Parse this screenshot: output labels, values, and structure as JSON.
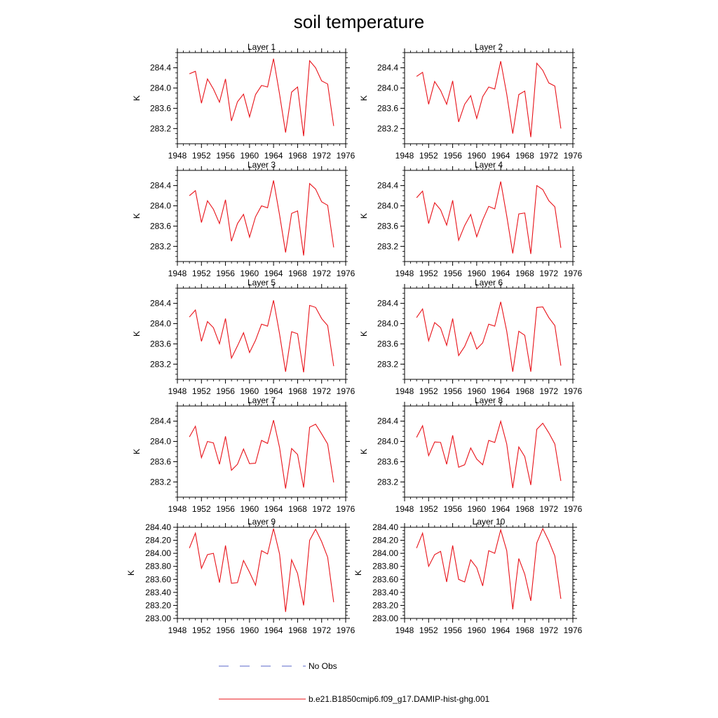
{
  "chart_data": {
    "type": "line",
    "title": "soil temperature",
    "xlim": [
      1948,
      1976
    ],
    "xticks": [
      1948,
      1952,
      1956,
      1960,
      1964,
      1968,
      1972,
      1976
    ],
    "x": [
      1950,
      1951,
      1952,
      1953,
      1954,
      1955,
      1956,
      1957,
      1958,
      1959,
      1960,
      1961,
      1962,
      1963,
      1964,
      1965,
      1966,
      1967,
      1968,
      1969,
      1970,
      1971,
      1972,
      1973,
      1974
    ],
    "series_color": "#e8131a",
    "nodata_color": "#5a67c8",
    "legend": [
      {
        "label": "No Obs",
        "style": "dashed",
        "color": "#5a67c8"
      },
      {
        "label": "b.e21.B1850cmip6.f09_g17.DAMIP-hist-ghg.001",
        "style": "solid",
        "color": "#e8131a"
      }
    ],
    "panels": [
      {
        "title": "Layer 1",
        "ylabel": "K",
        "ylim": [
          282.9,
          284.7
        ],
        "yticks": [
          "283.2",
          "283.6",
          "284.0",
          "284.4"
        ],
        "values": [
          284.28,
          284.33,
          283.7,
          284.18,
          283.98,
          283.72,
          284.18,
          283.35,
          283.73,
          283.88,
          283.43,
          283.87,
          284.05,
          284.02,
          284.58,
          283.88,
          283.12,
          283.92,
          284.02,
          283.05,
          284.54,
          284.4,
          284.14,
          284.08,
          283.25
        ]
      },
      {
        "title": "Layer 2",
        "ylabel": "K",
        "ylim": [
          282.9,
          284.7
        ],
        "yticks": [
          "283.2",
          "283.6",
          "284.0",
          "284.4"
        ],
        "values": [
          284.23,
          284.31,
          283.68,
          284.13,
          283.95,
          283.68,
          284.14,
          283.33,
          283.68,
          283.85,
          283.4,
          283.83,
          284.02,
          283.98,
          284.53,
          283.88,
          283.1,
          283.87,
          283.94,
          283.03,
          284.49,
          284.35,
          284.1,
          284.04,
          283.2
        ]
      },
      {
        "title": "Layer 3",
        "ylabel": "K",
        "ylim": [
          282.9,
          284.7
        ],
        "yticks": [
          "283.2",
          "283.6",
          "284.0",
          "284.4"
        ],
        "values": [
          284.2,
          284.3,
          283.67,
          284.1,
          283.93,
          283.65,
          284.12,
          283.3,
          283.65,
          283.83,
          283.38,
          283.78,
          284.0,
          283.96,
          284.5,
          283.82,
          283.08,
          283.85,
          283.9,
          283.02,
          284.44,
          284.33,
          284.08,
          284.01,
          283.18
        ]
      },
      {
        "title": "Layer 4",
        "ylabel": "K",
        "ylim": [
          282.9,
          284.7
        ],
        "yticks": [
          "283.2",
          "283.6",
          "284.0",
          "284.4"
        ],
        "values": [
          284.16,
          284.29,
          283.65,
          284.06,
          283.92,
          283.62,
          284.11,
          283.32,
          283.61,
          283.83,
          283.39,
          283.72,
          283.99,
          283.94,
          284.48,
          283.8,
          283.06,
          283.84,
          283.86,
          283.05,
          284.4,
          284.32,
          284.1,
          283.98,
          283.17
        ]
      },
      {
        "title": "Layer 5",
        "ylabel": "K",
        "ylim": [
          282.9,
          284.7
        ],
        "yticks": [
          "283.2",
          "283.6",
          "284.0",
          "284.4"
        ],
        "values": [
          284.13,
          284.27,
          283.65,
          284.04,
          283.92,
          283.6,
          284.1,
          283.32,
          283.56,
          283.82,
          283.43,
          283.67,
          283.99,
          283.95,
          284.46,
          283.8,
          283.05,
          283.84,
          283.8,
          283.04,
          284.36,
          284.32,
          284.1,
          283.96,
          283.16
        ]
      },
      {
        "title": "Layer 6",
        "ylabel": "K",
        "ylim": [
          282.9,
          284.7
        ],
        "yticks": [
          "283.2",
          "283.6",
          "284.0",
          "284.4"
        ],
        "values": [
          284.12,
          284.29,
          283.66,
          284.02,
          283.92,
          283.57,
          284.1,
          283.37,
          283.55,
          283.83,
          283.5,
          283.62,
          283.99,
          283.95,
          284.43,
          283.85,
          283.05,
          283.85,
          283.77,
          283.05,
          284.32,
          284.33,
          284.12,
          283.96,
          283.17
        ]
      },
      {
        "title": "Layer 7",
        "ylabel": "K",
        "ylim": [
          282.9,
          284.7
        ],
        "yticks": [
          "283.2",
          "283.6",
          "284.0",
          "284.4"
        ],
        "values": [
          284.09,
          284.3,
          283.68,
          284.0,
          283.97,
          283.55,
          284.1,
          283.43,
          283.55,
          283.85,
          283.56,
          283.57,
          284.02,
          283.96,
          284.42,
          283.88,
          283.07,
          283.86,
          283.74,
          283.09,
          284.28,
          284.34,
          284.15,
          283.95,
          283.19
        ]
      },
      {
        "title": "Layer 8",
        "ylabel": "K",
        "ylim": [
          282.9,
          284.7
        ],
        "yticks": [
          "283.2",
          "283.6",
          "284.0",
          "284.4"
        ],
        "values": [
          284.08,
          284.31,
          283.72,
          283.99,
          283.98,
          283.55,
          284.12,
          283.49,
          283.54,
          283.87,
          283.65,
          283.54,
          284.02,
          283.98,
          284.4,
          283.95,
          283.08,
          283.89,
          283.7,
          283.14,
          284.24,
          284.36,
          284.17,
          283.95,
          283.22
        ]
      },
      {
        "title": "Layer 9",
        "ylabel": "K",
        "ylim": [
          283.0,
          284.4
        ],
        "yticks": [
          "283.00",
          "283.20",
          "283.40",
          "283.60",
          "283.80",
          "284.00",
          "284.20",
          "284.40"
        ],
        "values": [
          284.08,
          284.31,
          283.77,
          283.98,
          284.0,
          283.55,
          284.12,
          283.54,
          283.55,
          283.89,
          283.71,
          283.51,
          284.04,
          283.99,
          284.38,
          283.99,
          283.1,
          283.9,
          283.69,
          283.2,
          284.2,
          284.37,
          284.18,
          283.94,
          283.25
        ]
      },
      {
        "title": "Layer 10",
        "ylabel": "K",
        "ylim": [
          283.0,
          284.4
        ],
        "yticks": [
          "283.00",
          "283.20",
          "283.40",
          "283.60",
          "283.80",
          "284.00",
          "284.20",
          "284.40"
        ],
        "values": [
          284.08,
          284.31,
          283.8,
          283.98,
          284.03,
          283.56,
          284.12,
          283.6,
          283.56,
          283.9,
          283.78,
          283.5,
          284.04,
          284.0,
          284.36,
          284.04,
          283.14,
          283.92,
          283.68,
          283.27,
          284.16,
          284.38,
          284.19,
          283.96,
          283.3
        ]
      }
    ]
  }
}
